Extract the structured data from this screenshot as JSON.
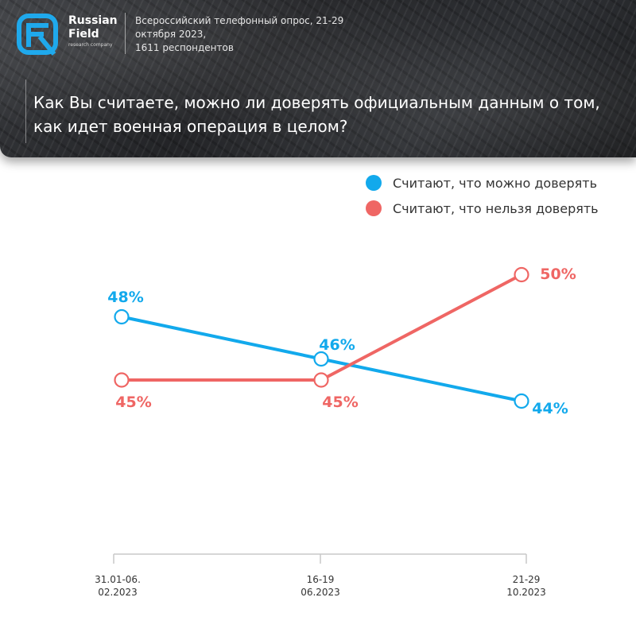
{
  "header": {
    "brand_line1": "Russian",
    "brand_line2": "Field",
    "brand_sub": "research company",
    "survey_info": "Всероссийский телефонный опрос, 21-29\nоктября 2023,\n1611 респондентов",
    "question": "Как Вы считаете, можно ли доверять официальным данным о том, как идет военная операция в целом?"
  },
  "colors": {
    "trust": "#12a9ec",
    "distrust": "#ef6664",
    "logo": "#1fa9ec"
  },
  "chart_data": {
    "type": "line",
    "title": "Как Вы считаете, можно ли доверять официальным данным о том, как идет военная операция в целом?",
    "categories": [
      "31.01-06.\n02.2023",
      "16-19\n06.2023",
      "21-29\n10.2023"
    ],
    "series": [
      {
        "name": "Считают, что можно доверять",
        "values": [
          48,
          46,
          44
        ],
        "labels": [
          "48%",
          "46%",
          "44%"
        ],
        "color": "#12a9ec"
      },
      {
        "name": "Считают, что нельзя доверять",
        "values": [
          45,
          45,
          50
        ],
        "labels": [
          "45%",
          "45%",
          "50%"
        ],
        "color": "#ef6664"
      }
    ],
    "unit": "%",
    "legend": "top-right",
    "grid": false,
    "xlabel": "",
    "ylabel": ""
  }
}
